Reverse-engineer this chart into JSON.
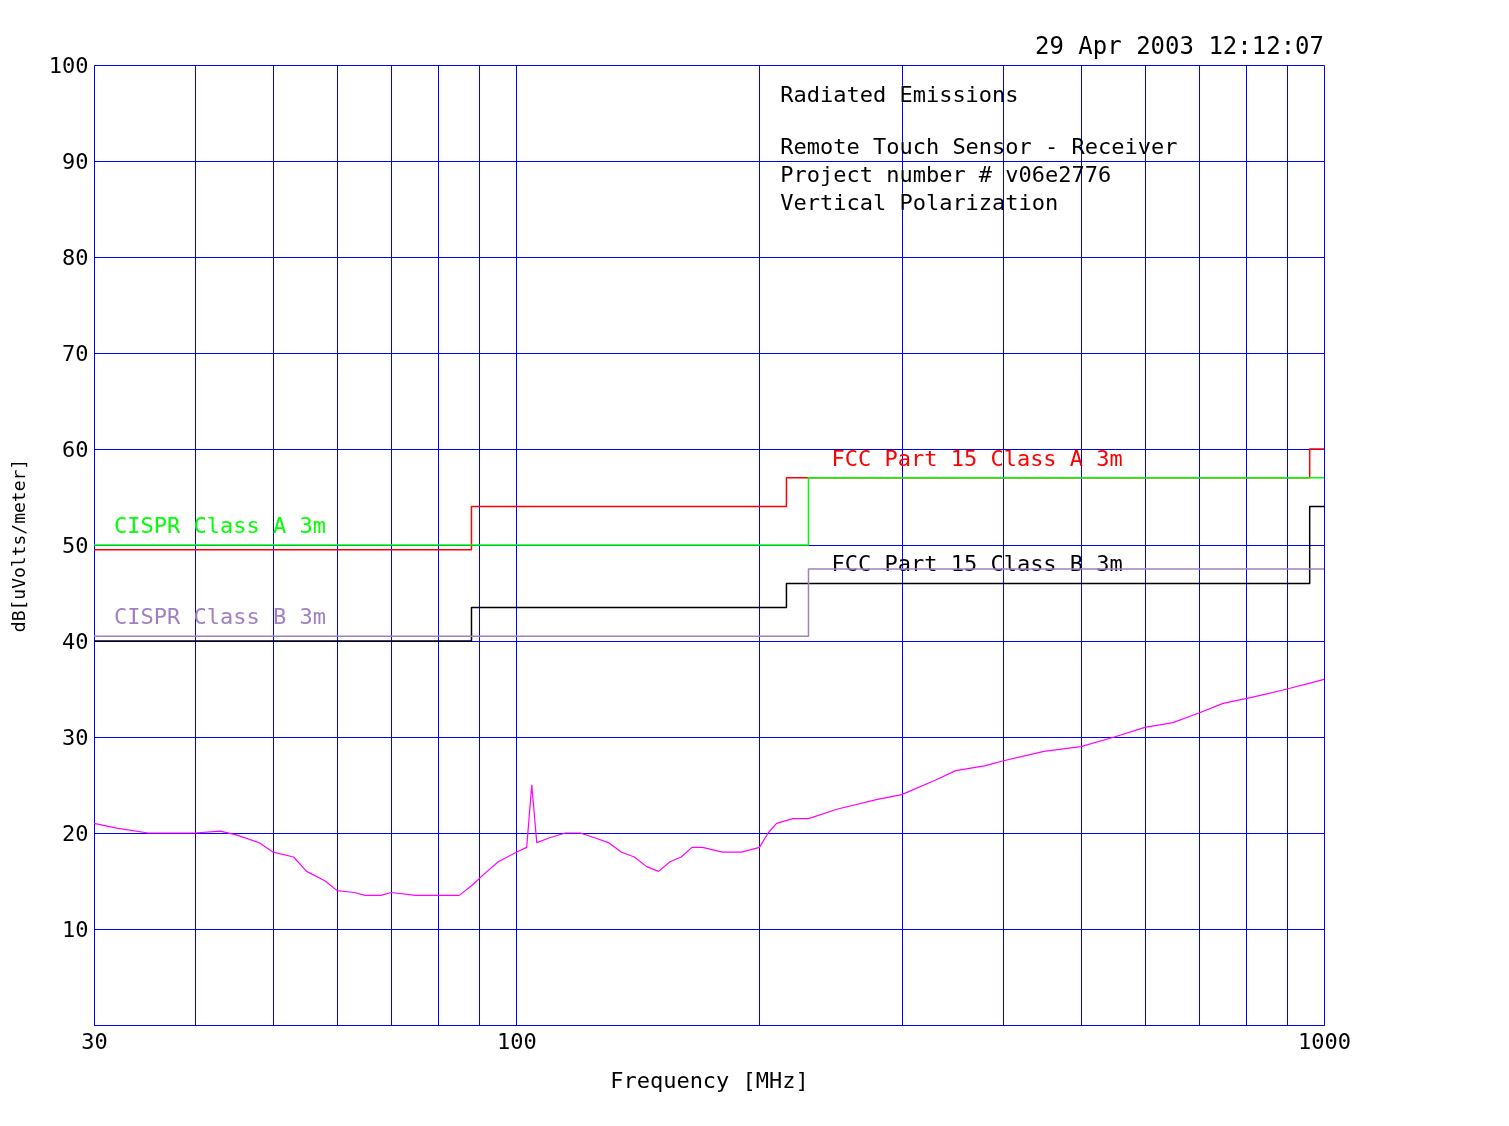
{
  "chart_data": {
    "type": "line",
    "title": "29 Apr 2003    12:12:07",
    "xlabel": "Frequency [MHz]",
    "ylabel": "dB[uVolts/meter]",
    "log": "x",
    "grid": true,
    "xlim": [
      30,
      1000
    ],
    "ylim": [
      0,
      100
    ],
    "xticks": [
      30,
      {
        "value": 40,
        "label": null
      },
      {
        "value": 50,
        "label": null
      },
      {
        "value": 60,
        "label": null
      },
      {
        "value": 70,
        "label": null
      },
      {
        "value": 80,
        "label": null
      },
      {
        "value": 90,
        "label": null
      },
      100,
      {
        "value": 200,
        "label": null
      },
      {
        "value": 300,
        "label": null
      },
      {
        "value": 400,
        "label": null
      },
      {
        "value": 500,
        "label": null
      },
      {
        "value": 600,
        "label": null
      },
      {
        "value": 700,
        "label": null
      },
      {
        "value": 800,
        "label": null
      },
      {
        "value": 900,
        "label": null
      },
      1000
    ],
    "yticks": [
      {
        "value": 0,
        "label": null
      },
      10,
      20,
      30,
      40,
      50,
      60,
      70,
      80,
      90,
      100
    ],
    "annotations": [
      "Radiated Emissions",
      "Remote Touch Sensor - Receiver",
      "Project number # v06e2776",
      "Vertical Polarization"
    ],
    "series": [
      {
        "name": "FCC Part 15  Class A 3m",
        "type": "step",
        "color": "#ff0000",
        "x": [
          30,
          88,
          216,
          960,
          1000
        ],
        "values": [
          49.5,
          54,
          57,
          60,
          60
        ]
      },
      {
        "name": "FCC Part 15 Class B 3m",
        "type": "step",
        "color": "#000000",
        "x": [
          30,
          88,
          216,
          960,
          1000
        ],
        "values": [
          40,
          43.5,
          46,
          54,
          54
        ]
      },
      {
        "name": "CISPR Class A 3m",
        "type": "step",
        "color": "#00ff00",
        "x": [
          30,
          230,
          1000
        ],
        "values": [
          50,
          57,
          57
        ]
      },
      {
        "name": "CISPR Class B 3m",
        "type": "step",
        "color": "#a080c0",
        "x": [
          30,
          230,
          1000
        ],
        "values": [
          40.5,
          47.5,
          47.5
        ]
      },
      {
        "type": "line",
        "color": "#ff00ff",
        "x": [
          30,
          32,
          35,
          38,
          40,
          43,
          45,
          48,
          50,
          53,
          55,
          58,
          60,
          63,
          65,
          68,
          70,
          75,
          80,
          85,
          88,
          92,
          95,
          100,
          103,
          104.5,
          106,
          110,
          115,
          120,
          125,
          130,
          135,
          140,
          145,
          150,
          155,
          160,
          165,
          170,
          180,
          190,
          200,
          205,
          210,
          220,
          230,
          250,
          280,
          300,
          330,
          350,
          380,
          400,
          450,
          500,
          550,
          600,
          650,
          700,
          750,
          800,
          850,
          900,
          950,
          1000
        ],
        "values": [
          21,
          20.5,
          20,
          20,
          20,
          20.2,
          19.8,
          19,
          18,
          17.5,
          16,
          15,
          14,
          13.8,
          13.5,
          13.5,
          13.8,
          13.5,
          13.5,
          13.5,
          14.5,
          16,
          17,
          18,
          18.5,
          25,
          19,
          19.5,
          20,
          20,
          19.5,
          19,
          18,
          17.5,
          16.5,
          16,
          17,
          17.5,
          18.5,
          18.5,
          18,
          18,
          18.5,
          20,
          21,
          21.5,
          21.5,
          22.5,
          23.5,
          24,
          25.5,
          26.5,
          27,
          27.5,
          28.5,
          29,
          30,
          31,
          31.5,
          32.5,
          33.5,
          34,
          34.5,
          35,
          35.5,
          36
        ]
      }
    ]
  }
}
